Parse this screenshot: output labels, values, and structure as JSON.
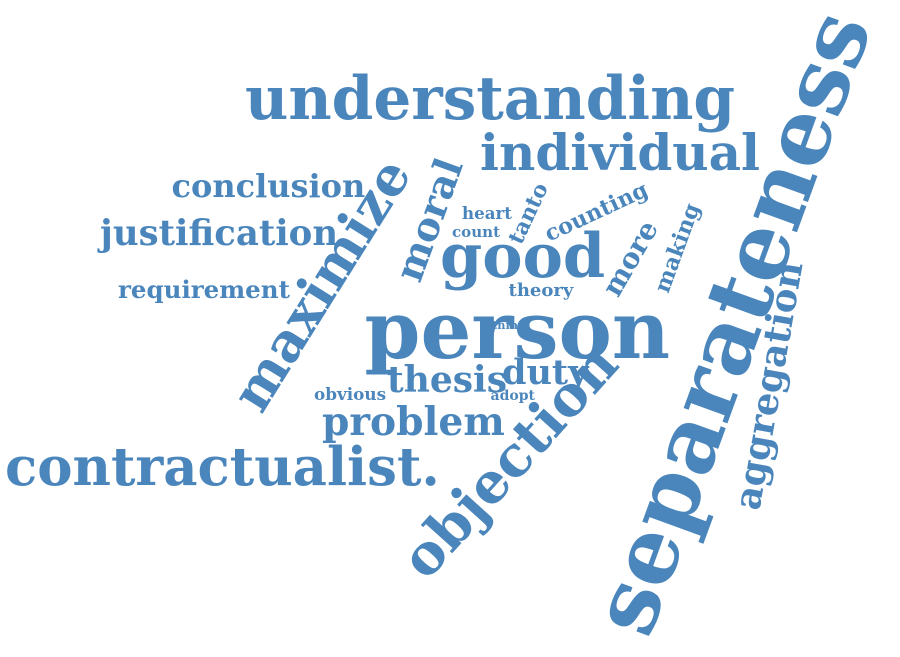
{
  "colors": {
    "text": "#4a86bc",
    "background": "#ffffff"
  },
  "words": [
    {
      "id": "understanding",
      "text": "understanding"
    },
    {
      "id": "individual",
      "text": "individual"
    },
    {
      "id": "conclusion",
      "text": "conclusion"
    },
    {
      "id": "justification",
      "text": "justification"
    },
    {
      "id": "requirement",
      "text": "requirement"
    },
    {
      "id": "maximize",
      "text": "maximize"
    },
    {
      "id": "moral",
      "text": "moral"
    },
    {
      "id": "heart",
      "text": "heart"
    },
    {
      "id": "count",
      "text": "count"
    },
    {
      "id": "tanto",
      "text": "tanto"
    },
    {
      "id": "counting",
      "text": "counting"
    },
    {
      "id": "good",
      "text": "good"
    },
    {
      "id": "more",
      "text": "more"
    },
    {
      "id": "making",
      "text": "making"
    },
    {
      "id": "theory",
      "text": "theory"
    },
    {
      "id": "person",
      "text": "person"
    },
    {
      "id": "thing",
      "text": "thing"
    },
    {
      "id": "thesis",
      "text": "thesis"
    },
    {
      "id": "duty",
      "text": "duty"
    },
    {
      "id": "obvious",
      "text": "obvious"
    },
    {
      "id": "adopt",
      "text": "adopt"
    },
    {
      "id": "problem",
      "text": "problem"
    },
    {
      "id": "contractualist",
      "text": "contractualist."
    },
    {
      "id": "objection",
      "text": "objection"
    },
    {
      "id": "separateness",
      "text": "separateness"
    },
    {
      "id": "aggregation",
      "text": "aggregation"
    }
  ]
}
